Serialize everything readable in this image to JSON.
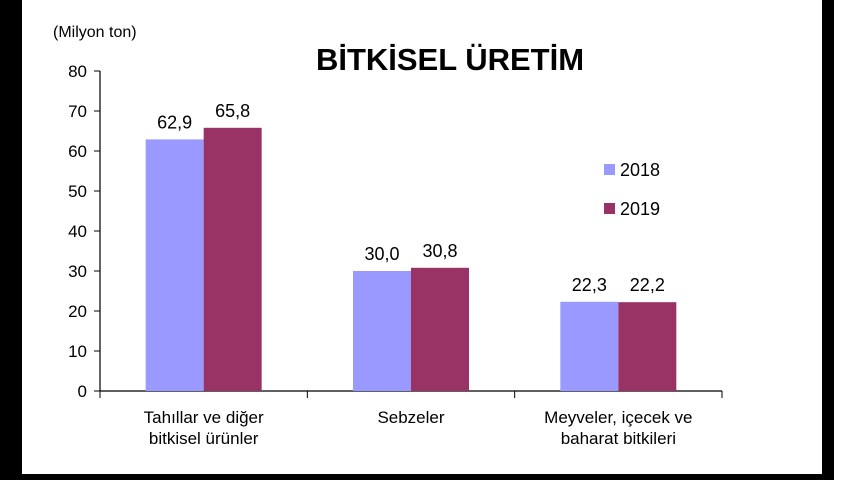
{
  "chart_data": {
    "type": "bar",
    "title": "BİTKİSEL ÜRETİM",
    "ylabel": "(Milyon ton)",
    "xlabel": "",
    "ylim": [
      0,
      80
    ],
    "yticks": [
      0,
      10,
      20,
      30,
      40,
      50,
      60,
      70,
      80
    ],
    "categories": [
      [
        "Tahıllar ve diğer",
        "bitkisel ürünler"
      ],
      [
        "Sebzeler"
      ],
      [
        "Meyveler, içecek ve",
        "baharat bitkileri"
      ]
    ],
    "series": [
      {
        "name": "2018",
        "color": "#9999ff",
        "values": [
          62.9,
          30.0,
          22.3
        ],
        "labels": [
          "62,9",
          "30,0",
          "22,3"
        ]
      },
      {
        "name": "2019",
        "color": "#993366",
        "values": [
          65.8,
          30.8,
          22.2
        ],
        "labels": [
          "65,8",
          "30,8",
          "22,2"
        ]
      }
    ],
    "legend_position": "right",
    "grid": false
  }
}
